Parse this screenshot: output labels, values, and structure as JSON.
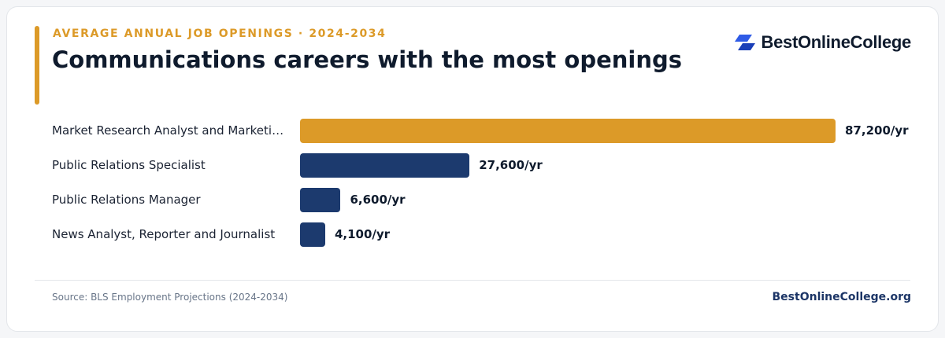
{
  "header": {
    "eyebrow": "AVERAGE ANNUAL JOB OPENINGS · 2024-2034",
    "title": "Communications careers with the most openings",
    "brand_name": "BestOnlineCollege"
  },
  "colors": {
    "accent": "#dc9a28",
    "primary_bar": "#1c3a6e",
    "highlight_bar": "#dc9a28"
  },
  "chart_data": {
    "type": "bar",
    "orientation": "horizontal",
    "categories": [
      "Market Research Analyst and Marketi…",
      "Public Relations Specialist",
      "Public Relations Manager",
      "News Analyst, Reporter and Journalist"
    ],
    "values": [
      87200,
      27600,
      6600,
      4100
    ],
    "value_labels": [
      "87,200/yr",
      "27,600/yr",
      "6,600/yr",
      "4,100/yr"
    ],
    "highlight_index": 0,
    "xlim": [
      0,
      87200
    ],
    "grid": false
  },
  "footer": {
    "source": "Source: BLS Employment Projections (2024-2034)",
    "site": "BestOnlineCollege.org"
  }
}
